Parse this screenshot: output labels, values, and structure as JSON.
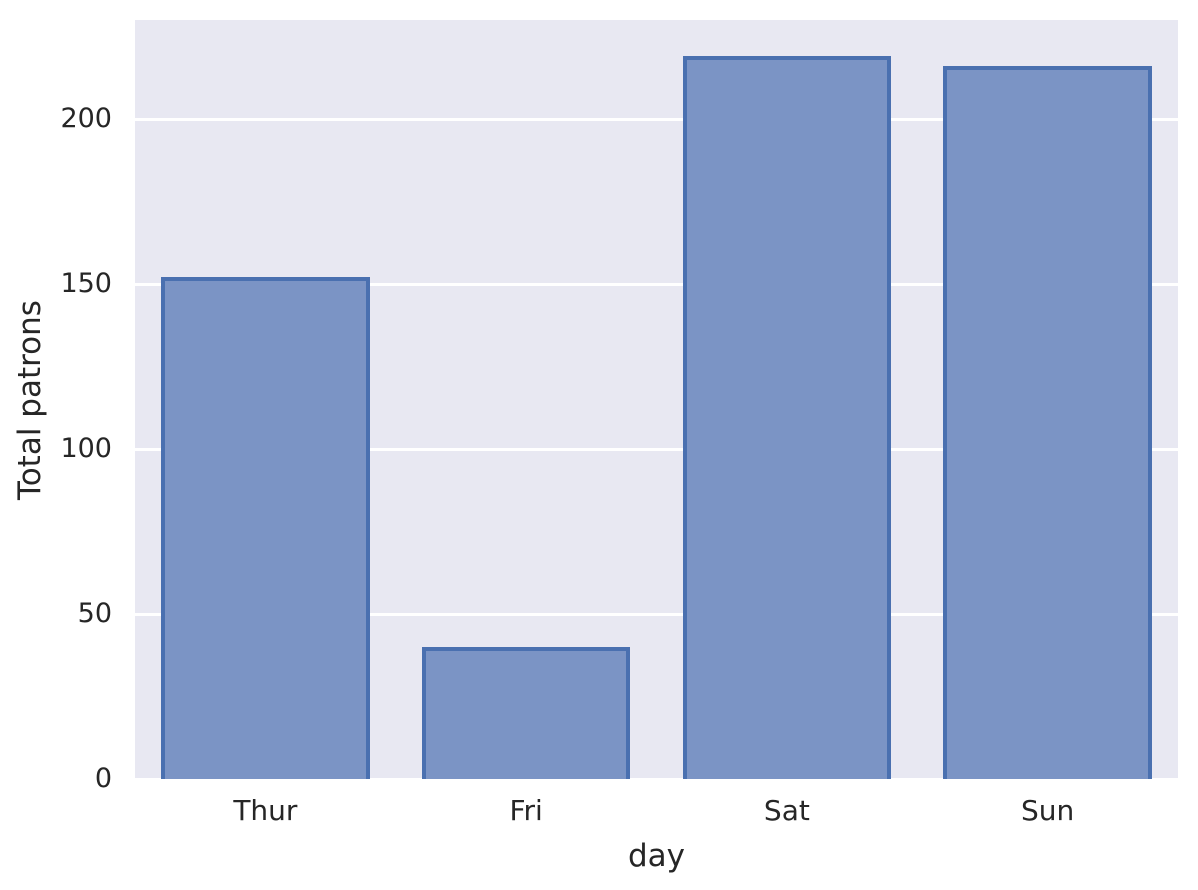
{
  "chart_data": {
    "type": "bar",
    "categories": [
      "Thur",
      "Fri",
      "Sat",
      "Sun"
    ],
    "values": [
      152,
      40,
      219,
      216
    ],
    "title": "",
    "xlabel": "day",
    "ylabel": "Total patrons",
    "ylim": [
      0,
      230
    ],
    "yticks": [
      0,
      50,
      100,
      150,
      200
    ],
    "grid": true,
    "legend_position": "none",
    "colors": {
      "bar_fill": "#7b94c5",
      "bar_edge": "#4a70b0",
      "plot_background": "#e8e8f2",
      "gridline": "#ffffff",
      "text": "#262626",
      "figure_background": "#ffffff"
    }
  }
}
